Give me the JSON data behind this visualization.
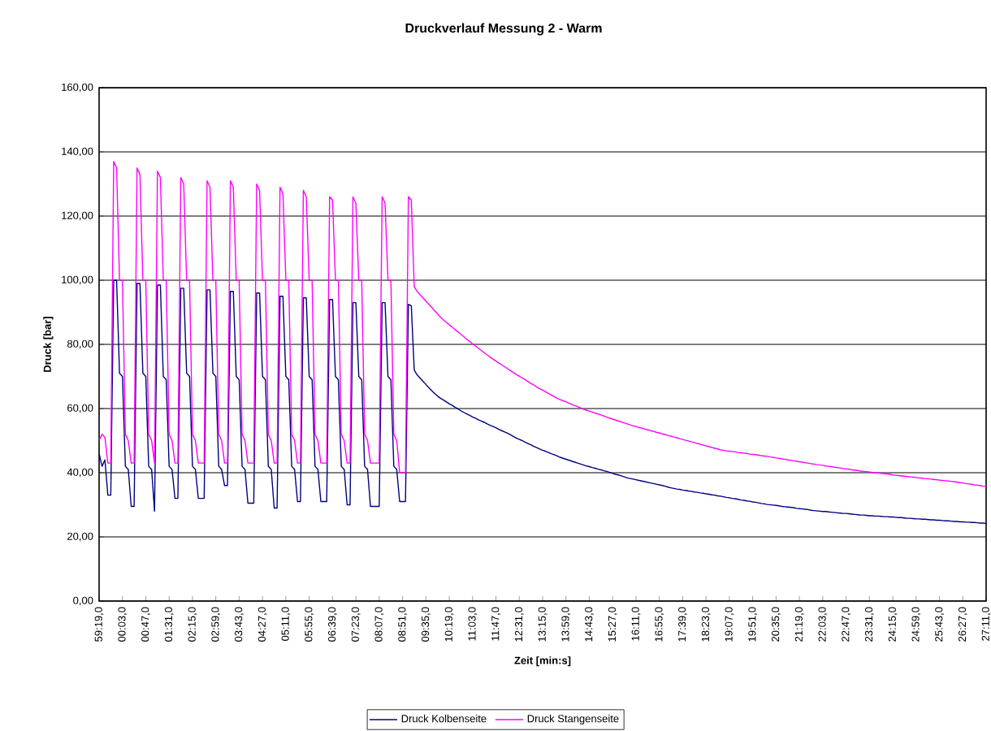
{
  "chart_data": {
    "type": "line",
    "title": "Druckverlauf Messung 2 - Warm",
    "xlabel": "Zeit [min:s]",
    "ylabel": "Druck [bar]",
    "categories": [
      "59:19,0",
      null,
      null,
      null,
      null,
      null,
      null,
      null,
      "00:03,0",
      null,
      null,
      null,
      null,
      null,
      null,
      null,
      "00:47,0",
      null,
      null,
      null,
      null,
      null,
      null,
      null,
      "01:31,0",
      null,
      null,
      null,
      null,
      null,
      null,
      null,
      "02:15,0",
      null,
      null,
      null,
      null,
      null,
      null,
      null,
      "02:59,0",
      null,
      null,
      null,
      null,
      null,
      null,
      null,
      "03:43,0",
      null,
      null,
      null,
      null,
      null,
      null,
      null,
      "04:27,0",
      null,
      null,
      null,
      null,
      null,
      null,
      null,
      "05:11,0",
      null,
      null,
      null,
      null,
      null,
      null,
      null,
      "05:55,0",
      null,
      null,
      null,
      null,
      null,
      null,
      null,
      "06:39,0",
      null,
      null,
      null,
      null,
      null,
      null,
      null,
      "07:23,0",
      null,
      null,
      null,
      null,
      null,
      null,
      null,
      "08:07,0",
      null,
      null,
      null,
      null,
      null,
      null,
      null,
      "08:51,0",
      null,
      null,
      null,
      null,
      null,
      null,
      null,
      "09:35,0",
      null,
      null,
      null,
      null,
      null,
      null,
      null,
      "10:19,0",
      null,
      null,
      null,
      null,
      null,
      null,
      null,
      "11:03,0",
      null,
      null,
      null,
      null,
      null,
      null,
      null,
      "11:47,0",
      null,
      null,
      null,
      null,
      null,
      null,
      null,
      "12:31,0",
      null,
      null,
      null,
      null,
      null,
      null,
      null,
      "13:15,0",
      null,
      null,
      null,
      null,
      null,
      null,
      null,
      "13:59,0",
      null,
      null,
      null,
      null,
      null,
      null,
      null,
      "14:43,0",
      null,
      null,
      null,
      null,
      null,
      null,
      null,
      "15:27,0",
      null,
      null,
      null,
      null,
      null,
      null,
      null,
      "16:11,0",
      null,
      null,
      null,
      null,
      null,
      null,
      null,
      "16:55,0",
      null,
      null,
      null,
      null,
      null,
      null,
      null,
      "17:39,0",
      null,
      null,
      null,
      null,
      null,
      null,
      null,
      "18:23,0",
      null,
      null,
      null,
      null,
      null,
      null,
      null,
      "19:07,0",
      null,
      null,
      null,
      null,
      null,
      null,
      null,
      "19:51,0",
      null,
      null,
      null,
      null,
      null,
      null,
      null,
      "20:35,0",
      null,
      null,
      null,
      null,
      null,
      null,
      null,
      "21:19,0",
      null,
      null,
      null,
      null,
      null,
      null,
      null,
      "22:03,0",
      null,
      null,
      null,
      null,
      null,
      null,
      null,
      "22:47,0",
      null,
      null,
      null,
      null,
      null,
      null,
      null,
      "23:31,0",
      null,
      null,
      null,
      null,
      null,
      null,
      null,
      "24:15,0",
      null,
      null,
      null,
      null,
      null,
      null,
      null,
      "24:59,0",
      null,
      null,
      null,
      null,
      null,
      null,
      null,
      "25:43,0",
      null,
      null,
      null,
      null,
      null,
      null,
      null,
      "26:27,0",
      null,
      null,
      null,
      null,
      null,
      null,
      null,
      "27:11,0"
    ],
    "series": [
      {
        "name": "Druck Kolbenseite",
        "color": "#000080",
        "values": [
          46,
          42,
          44,
          33,
          33,
          100,
          100,
          71,
          70,
          42,
          41,
          29.5,
          29.5,
          99,
          99,
          71,
          70,
          42,
          41,
          28,
          98.5,
          98.5,
          70,
          69,
          42,
          41,
          32,
          32,
          97.5,
          97.5,
          71,
          70,
          42,
          41,
          32,
          32,
          32,
          97,
          97,
          71,
          70,
          42,
          41,
          36,
          36,
          96.5,
          96.5,
          70,
          69,
          42,
          41,
          30.5,
          30.5,
          30.5,
          96,
          96,
          70,
          69,
          42,
          41,
          29,
          29,
          95,
          95,
          70,
          69,
          42,
          41,
          31,
          31,
          94.5,
          94.5,
          70,
          69,
          42,
          41,
          31,
          31,
          31,
          94,
          94,
          70,
          69,
          42,
          41,
          30,
          30,
          93,
          93,
          70,
          69,
          42,
          41,
          29.5,
          29.5,
          29.5,
          29.5,
          93,
          93,
          70,
          69,
          42,
          41,
          31,
          31,
          31,
          92.5,
          92,
          72,
          70.5,
          69.5,
          68.5,
          67.5,
          66.5,
          65.6,
          64.7,
          63.9,
          63.2,
          62.7,
          62.1,
          61.5,
          61.0,
          60.4,
          59.9,
          59.3,
          58.8,
          58.3,
          57.9,
          57.4,
          57.0,
          56.5,
          56.1,
          55.7,
          55.2,
          54.8,
          54.4,
          54.0,
          53.5,
          53.1,
          52.7,
          52.3,
          51.8,
          51.3,
          50.8,
          50.4,
          50.0,
          49.5,
          49.1,
          48.7,
          48.2,
          47.8,
          47.4,
          47.0,
          46.7,
          46.3,
          45.9,
          45.6,
          45.2,
          44.8,
          44.5,
          44.2,
          43.9,
          43.6,
          43.3,
          43.0,
          42.7,
          42.4,
          42.1,
          41.9,
          41.6,
          41.4,
          41.1,
          40.9,
          40.6,
          40.4,
          40.1,
          39.8,
          39.5,
          39.3,
          39.0,
          38.7,
          38.4,
          38.2,
          38.0,
          37.8,
          37.6,
          37.4,
          37.2,
          37.0,
          36.8,
          36.6,
          36.4,
          36.2,
          36.0,
          35.8,
          35.5,
          35.3,
          35.1,
          34.9,
          34.8,
          34.6,
          34.5,
          34.3,
          34.2,
          34.0,
          33.9,
          33.7,
          33.6,
          33.4,
          33.3,
          33.1,
          33.0,
          32.8,
          32.7,
          32.5,
          32.3,
          32.2,
          32.0,
          31.9,
          31.7,
          31.5,
          31.4,
          31.2,
          31.1,
          30.9,
          30.8,
          30.6,
          30.4,
          30.3,
          30.1,
          30.0,
          29.9,
          29.8,
          29.7,
          29.5,
          29.4,
          29.3,
          29.2,
          29.1,
          28.9,
          28.8,
          28.7,
          28.6,
          28.5,
          28.3,
          28.2,
          28.1,
          28.0,
          27.9,
          27.9,
          27.8,
          27.7,
          27.6,
          27.5,
          27.4,
          27.3,
          27.3,
          27.2,
          27.1,
          27.0,
          26.9,
          26.8,
          26.8,
          26.7,
          26.6,
          26.6,
          26.5,
          26.5,
          26.4,
          26.3,
          26.3,
          26.2,
          26.2,
          26.1,
          26.0,
          26.0,
          25.9,
          25.8,
          25.8,
          25.7,
          25.6,
          25.6,
          25.5,
          25.5,
          25.4,
          25.3,
          25.3,
          25.2,
          25.2,
          25.1,
          25.0,
          25.0,
          24.9,
          24.8,
          24.8,
          24.7,
          24.7,
          24.6,
          24.6,
          24.5,
          24.5,
          24.4,
          24.3,
          24.3,
          24.2
        ]
      },
      {
        "name": "Druck Stangenseite",
        "color": "#ff00ff",
        "values": [
          50,
          52,
          51,
          43,
          43,
          137,
          135,
          100,
          100,
          52,
          50,
          43,
          43,
          135,
          133,
          100,
          100,
          52,
          50,
          43,
          134,
          132,
          100,
          100,
          52,
          50,
          43,
          43,
          132,
          130,
          100,
          100,
          52,
          50,
          43,
          43,
          43,
          131,
          129,
          100,
          100,
          52,
          50,
          43,
          43,
          131,
          129,
          100,
          100,
          52,
          50,
          43,
          43,
          43,
          130,
          128,
          100,
          100,
          52,
          50,
          43,
          43,
          129,
          127,
          100,
          100,
          52,
          50,
          43,
          43,
          128,
          126,
          100,
          100,
          52,
          50,
          43,
          43,
          43,
          126,
          125,
          100,
          100,
          52,
          50,
          43,
          43,
          126,
          124,
          100,
          100,
          52,
          50,
          43,
          43,
          43,
          43,
          126,
          124,
          100,
          100,
          52,
          50,
          40,
          40,
          40,
          126,
          125,
          98,
          96.5,
          95.5,
          94.5,
          93.5,
          92.5,
          91.5,
          90.5,
          89.5,
          88.5,
          87.6,
          86.9,
          86.1,
          85.4,
          84.6,
          83.9,
          83.1,
          82.4,
          81.6,
          80.9,
          80.2,
          79.5,
          78.8,
          78.1,
          77.4,
          76.7,
          76.0,
          75.4,
          74.8,
          74.2,
          73.6,
          73.0,
          72.4,
          71.8,
          71.2,
          70.6,
          70.1,
          69.5,
          69.0,
          68.4,
          67.8,
          67.3,
          66.7,
          66.2,
          65.7,
          65.2,
          64.7,
          64.2,
          63.7,
          63.2,
          62.8,
          62.4,
          62.1,
          61.7,
          61.3,
          60.9,
          60.6,
          60.2,
          59.8,
          59.5,
          59.2,
          58.9,
          58.6,
          58.3,
          58.0,
          57.7,
          57.3,
          57.0,
          56.7,
          56.4,
          56.1,
          55.8,
          55.5,
          55.2,
          54.9,
          54.6,
          54.4,
          54.1,
          53.9,
          53.6,
          53.4,
          53.1,
          52.9,
          52.6,
          52.4,
          52.1,
          51.9,
          51.6,
          51.4,
          51.1,
          50.9,
          50.6,
          50.4,
          50.1,
          49.9,
          49.6,
          49.4,
          49.1,
          48.9,
          48.6,
          48.4,
          48.1,
          47.9,
          47.6,
          47.4,
          47.1,
          47.0,
          46.8,
          46.7,
          46.6,
          46.5,
          46.3,
          46.2,
          46.1,
          46.0,
          45.8,
          45.7,
          45.6,
          45.5,
          45.3,
          45.2,
          45.1,
          44.9,
          44.8,
          44.6,
          44.5,
          44.3,
          44.2,
          44.0,
          43.9,
          43.7,
          43.6,
          43.4,
          43.3,
          43.1,
          43.0,
          42.8,
          42.7,
          42.5,
          42.4,
          42.3,
          42.1,
          42.0,
          41.9,
          41.7,
          41.6,
          41.5,
          41.3,
          41.2,
          41.1,
          40.9,
          40.8,
          40.7,
          40.5,
          40.4,
          40.3,
          40.2,
          40.1,
          40.0,
          39.9,
          39.8,
          39.7,
          39.6,
          39.5,
          39.3,
          39.2,
          39.1,
          39.0,
          38.9,
          38.8,
          38.7,
          38.6,
          38.5,
          38.4,
          38.3,
          38.2,
          38.1,
          38.0,
          37.9,
          37.8,
          37.7,
          37.6,
          37.5,
          37.4,
          37.3,
          37.2,
          37.1,
          36.9,
          36.8,
          36.6,
          36.5,
          36.4,
          36.2,
          36.1,
          36.0,
          35.8,
          35.7
        ]
      }
    ],
    "ylim": [
      0,
      160
    ],
    "yticks": [
      {
        "value": 0,
        "label": "0,00"
      },
      {
        "value": 20,
        "label": "20,00"
      },
      {
        "value": 40,
        "label": "40,00"
      },
      {
        "value": 60,
        "label": "60,00"
      },
      {
        "value": 80,
        "label": "80,00"
      },
      {
        "value": 100,
        "label": "100,00"
      },
      {
        "value": 120,
        "label": "120,00"
      },
      {
        "value": 140,
        "label": "140,00"
      },
      {
        "value": 160,
        "label": "160,00"
      }
    ],
    "grid": "y",
    "legend": "bottom"
  }
}
